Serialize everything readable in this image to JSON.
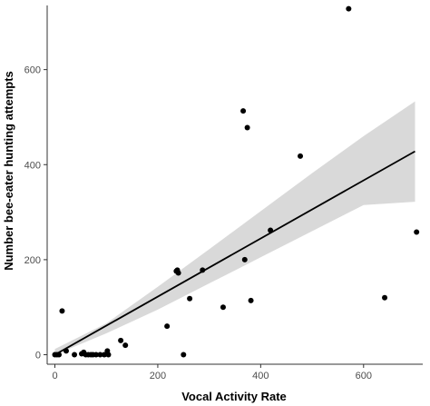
{
  "chart_data": {
    "type": "scatter",
    "xlabel": "Vocal Activity Rate",
    "ylabel": "Number bee-eater hunting attempts",
    "xlim": [
      -15,
      715
    ],
    "ylim": [
      -20,
      735
    ],
    "x_ticks": [
      0,
      200,
      400,
      600
    ],
    "y_ticks": [
      0,
      200,
      400,
      600
    ],
    "grid": false,
    "legend": "none",
    "points": [
      {
        "x": 0,
        "y": 0
      },
      {
        "x": 4,
        "y": 0
      },
      {
        "x": 8,
        "y": 0
      },
      {
        "x": 14,
        "y": 92
      },
      {
        "x": 22,
        "y": 8
      },
      {
        "x": 38,
        "y": 0
      },
      {
        "x": 52,
        "y": 2
      },
      {
        "x": 56,
        "y": 5
      },
      {
        "x": 60,
        "y": 0
      },
      {
        "x": 65,
        "y": 0
      },
      {
        "x": 70,
        "y": 0
      },
      {
        "x": 74,
        "y": 0
      },
      {
        "x": 80,
        "y": 0
      },
      {
        "x": 88,
        "y": 0
      },
      {
        "x": 96,
        "y": 0
      },
      {
        "x": 102,
        "y": 8
      },
      {
        "x": 104,
        "y": 0
      },
      {
        "x": 128,
        "y": 30
      },
      {
        "x": 137,
        "y": 20
      },
      {
        "x": 218,
        "y": 60
      },
      {
        "x": 236,
        "y": 176
      },
      {
        "x": 238,
        "y": 178
      },
      {
        "x": 240,
        "y": 172
      },
      {
        "x": 250,
        "y": 0
      },
      {
        "x": 262,
        "y": 118
      },
      {
        "x": 287,
        "y": 178
      },
      {
        "x": 327,
        "y": 100
      },
      {
        "x": 366,
        "y": 513
      },
      {
        "x": 369,
        "y": 200
      },
      {
        "x": 374,
        "y": 478
      },
      {
        "x": 381,
        "y": 114
      },
      {
        "x": 419,
        "y": 262
      },
      {
        "x": 477,
        "y": 418
      },
      {
        "x": 571,
        "y": 728
      },
      {
        "x": 641,
        "y": 120
      },
      {
        "x": 703,
        "y": 258
      }
    ],
    "fit_line": {
      "x": [
        0,
        700
      ],
      "y": [
        0,
        428
      ]
    },
    "confidence_band": {
      "x": [
        0,
        100,
        200,
        300,
        400,
        500,
        600,
        700
      ],
      "lower": [
        0,
        45,
        95,
        150,
        205,
        260,
        315,
        322
      ],
      "upper": [
        12,
        66,
        143,
        222,
        302,
        382,
        460,
        533
      ]
    },
    "colors": {
      "points": "#000000",
      "line": "#000000",
      "band": "#d9d9d9",
      "axis": "#333333"
    }
  }
}
